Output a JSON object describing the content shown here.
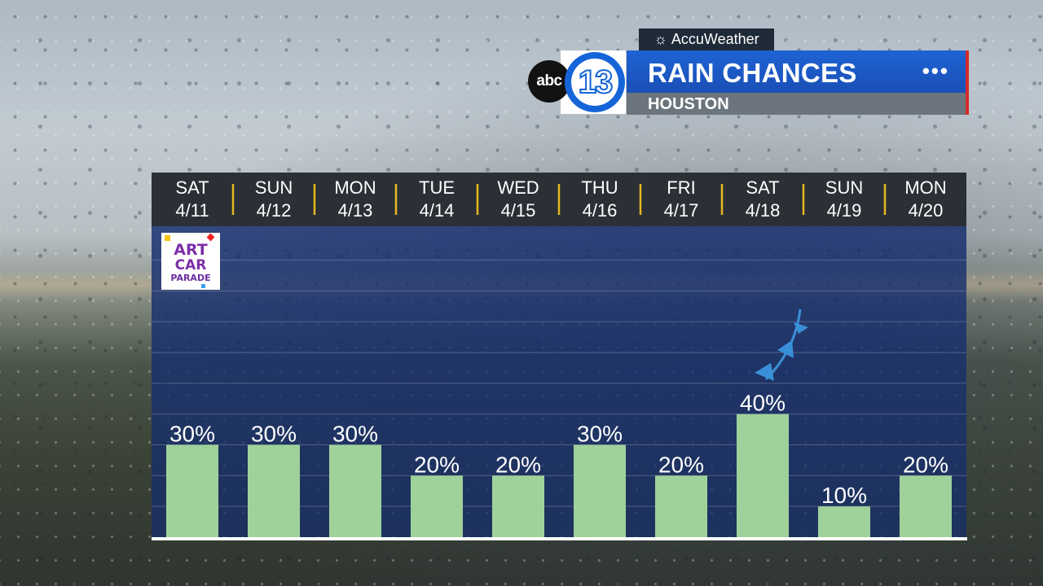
{
  "brand": {
    "accuweather_label": "AccuWeather",
    "abc_label": "abc",
    "station_number": "13"
  },
  "header": {
    "title": "RAIN CHANCES",
    "subtitle": "HOUSTON",
    "menu_dots": "•••"
  },
  "badge": {
    "line1": "ART",
    "line2": "CAR",
    "line3": "PARADE"
  },
  "colors": {
    "bar": "#9fd29b",
    "title_bar": "#1e63d4",
    "accent_red": "#d42a2a",
    "header_bg": "#2b3036",
    "divider": "#e6b81e",
    "front": "#3a8fd9"
  },
  "chart_data": {
    "type": "bar",
    "title": "RAIN CHANCES",
    "subtitle": "HOUSTON",
    "categories": [
      {
        "day": "SAT",
        "date": "4/11"
      },
      {
        "day": "SUN",
        "date": "4/12"
      },
      {
        "day": "MON",
        "date": "4/13"
      },
      {
        "day": "TUE",
        "date": "4/14"
      },
      {
        "day": "WED",
        "date": "4/15"
      },
      {
        "day": "THU",
        "date": "4/16"
      },
      {
        "day": "FRI",
        "date": "4/17"
      },
      {
        "day": "SAT",
        "date": "4/18"
      },
      {
        "day": "SUN",
        "date": "4/19"
      },
      {
        "day": "MON",
        "date": "4/20"
      }
    ],
    "values": [
      30,
      30,
      30,
      20,
      20,
      30,
      20,
      40,
      10,
      20
    ],
    "value_labels": [
      "30%",
      "30%",
      "30%",
      "20%",
      "20%",
      "30%",
      "20%",
      "40%",
      "10%",
      "20%"
    ],
    "ylim": [
      0,
      100
    ],
    "grid": true,
    "annotations": [
      {
        "type": "cold-front",
        "category_index": 7
      }
    ]
  }
}
